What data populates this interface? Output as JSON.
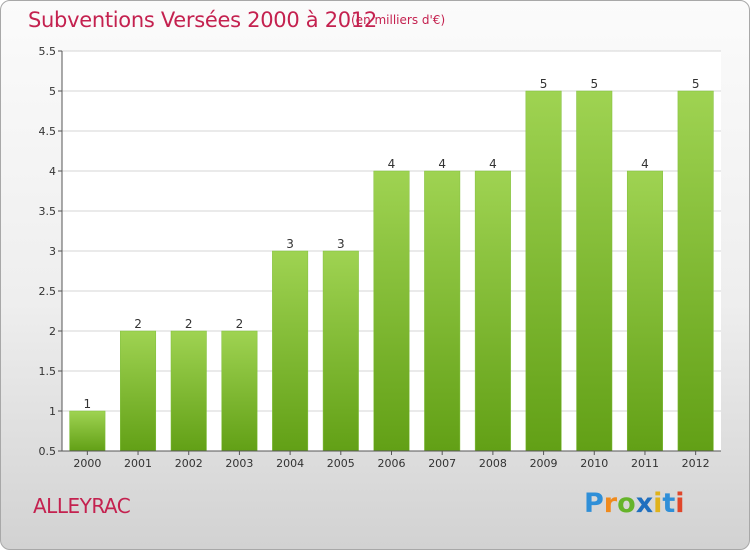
{
  "chart_data": {
    "type": "bar",
    "title": "Subventions Versées 2000 à 2012",
    "unit_note": "(en milliers d'€)",
    "xlabel": "",
    "ylabel": "",
    "categories": [
      "2000",
      "2001",
      "2002",
      "2003",
      "2004",
      "2005",
      "2006",
      "2007",
      "2008",
      "2009",
      "2010",
      "2011",
      "2012"
    ],
    "values": [
      1,
      2,
      2,
      2,
      3,
      3,
      4,
      4,
      4,
      5,
      5,
      4,
      5
    ],
    "data_labels": [
      "1",
      "2",
      "2",
      "2",
      "3",
      "3",
      "4",
      "4",
      "4",
      "5",
      "5",
      "4",
      "5"
    ],
    "ylim": [
      0.5,
      5.5
    ],
    "yticks": [
      0.5,
      1,
      1.5,
      2,
      2.5,
      3,
      3.5,
      4,
      4.5,
      5,
      5.5
    ],
    "ytick_labels": [
      "0.5",
      "1",
      "1.5",
      "2",
      "2.5",
      "3",
      "3.5",
      "4",
      "4.5",
      "5",
      "5.5"
    ],
    "grid": true,
    "bar_color_top": "#9fd352",
    "bar_color_bottom": "#62a016"
  },
  "place_name": "ALLEYRAC",
  "logo": {
    "letters": [
      "P",
      "r",
      "o",
      "x",
      "i",
      "t",
      "i"
    ],
    "colors": [
      "#2f8fd8",
      "#f08a1c",
      "#66b42a",
      "#1f6fbf",
      "#e0b21a",
      "#2f8fd8",
      "#e0462a"
    ]
  }
}
